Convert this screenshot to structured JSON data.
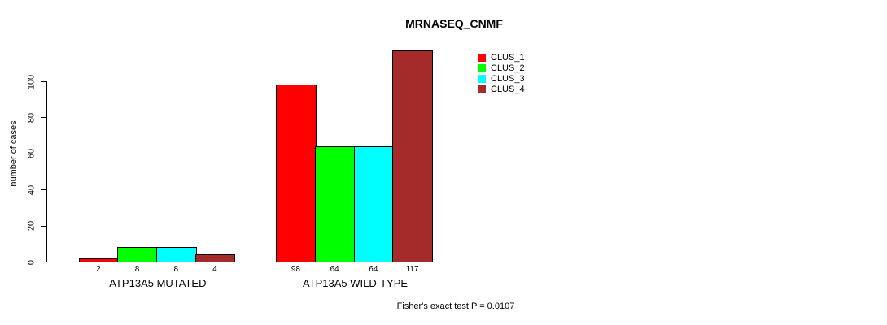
{
  "page": {
    "background": "#FFFFFF"
  },
  "chart_data": {
    "type": "bar",
    "title": "MRNASEQ_CNMF",
    "ylabel": "number of cases",
    "xlabel": "",
    "categories": [
      "ATP13A5 MUTATED",
      "ATP13A5 WILD-TYPE"
    ],
    "series": [
      {
        "name": "CLUS_1",
        "color": "#FF0000",
        "values": [
          2,
          98
        ]
      },
      {
        "name": "CLUS_2",
        "color": "#00FF00",
        "values": [
          8,
          64
        ]
      },
      {
        "name": "CLUS_3",
        "color": "#00FFFF",
        "values": [
          8,
          64
        ]
      },
      {
        "name": "CLUS_4",
        "color": "#A52A2A",
        "values": [
          4,
          117
        ]
      }
    ],
    "bar_value_labels": [
      [
        "2",
        "8",
        "8",
        "4"
      ],
      [
        "98",
        "64",
        "64",
        "117"
      ]
    ],
    "yticks": [
      0,
      20,
      40,
      60,
      80,
      100
    ],
    "ylim": [
      0,
      100
    ],
    "grid": false,
    "legend_position": "top-right",
    "legend_entries": [
      "CLUS_1",
      "CLUS_2",
      "CLUS_3",
      "CLUS_4"
    ],
    "annotation": "Fisher's exact test P = 0.0107"
  }
}
